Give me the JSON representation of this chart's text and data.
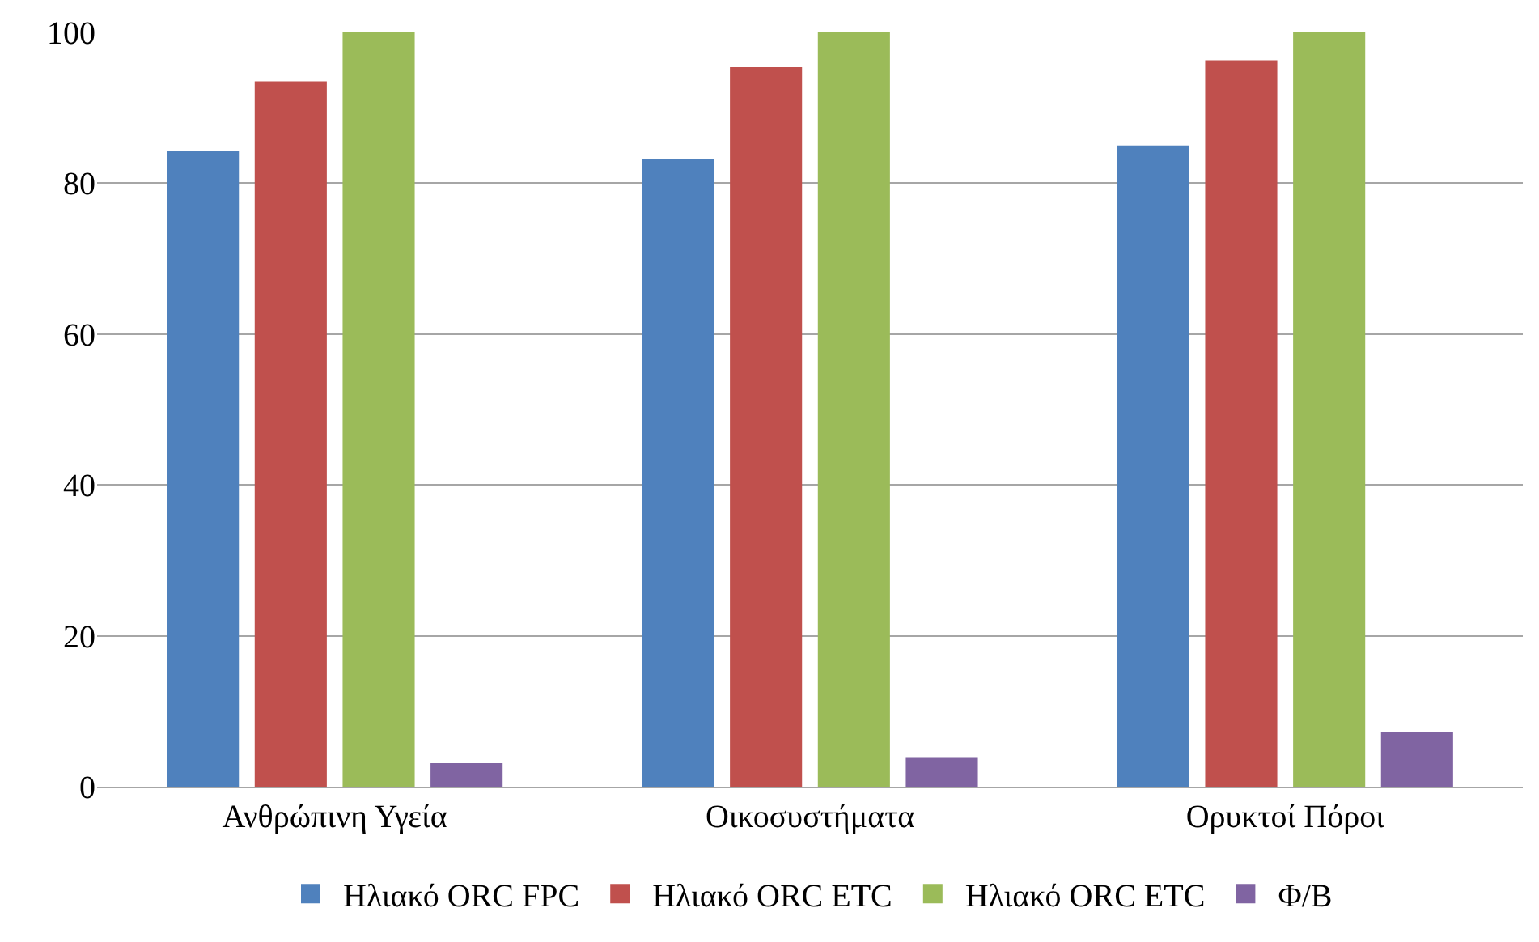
{
  "chart_data": {
    "type": "bar",
    "categories": [
      "Ανθρώπινη Υγεία",
      "Οικοσυστήματα",
      "Ορυκτοί Πόροι"
    ],
    "series": [
      {
        "name": "Ηλιακό ORC FPC",
        "color": "#4f81bd",
        "values": [
          84.3,
          83.2,
          85.0
        ]
      },
      {
        "name": "Ηλιακό ORC ETC",
        "color": "#c0504d",
        "values": [
          93.5,
          95.4,
          96.3
        ]
      },
      {
        "name": "Ηλιακό ORC ETC",
        "color": "#9bbb59",
        "values": [
          100,
          100,
          100
        ]
      },
      {
        "name": "Φ/Β",
        "color": "#8064a2",
        "values": [
          3.1,
          3.8,
          7.2
        ]
      }
    ],
    "ylim": [
      0,
      100
    ],
    "yticks": [
      0,
      20,
      40,
      60,
      80,
      100
    ],
    "grid": "y",
    "legend": "bottom"
  }
}
